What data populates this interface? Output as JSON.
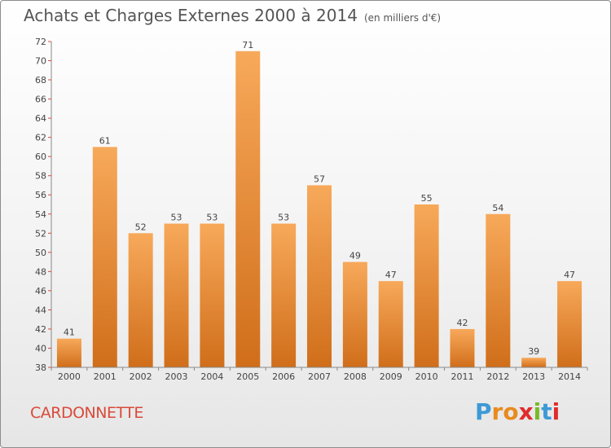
{
  "title": "Achats et Charges Externes 2000 à 2014",
  "unit": "(en milliers d'€)",
  "commune": "CARDONNETTE",
  "logo": {
    "letters": [
      "P",
      "r",
      "o",
      "x",
      "i",
      "t",
      "i"
    ],
    "colors": [
      "#3c9ad6",
      "#e88b1f",
      "#e88b1f",
      "#e12c2c",
      "#7ab929",
      "#3c9ad6",
      "#e12c2c"
    ]
  },
  "colors": {
    "bar_light": "#f7a95a",
    "bar_dark": "#d06e1a",
    "axis": "#888888",
    "grid_tick": "#d94a3a",
    "commune": "#d94a3a"
  },
  "chart_data": {
    "type": "bar",
    "categories": [
      "2000",
      "2001",
      "2002",
      "2003",
      "2004",
      "2005",
      "2006",
      "2007",
      "2008",
      "2009",
      "2010",
      "2011",
      "2012",
      "2013",
      "2014"
    ],
    "values": [
      41,
      61,
      52,
      53,
      53,
      71,
      53,
      57,
      49,
      47,
      55,
      42,
      54,
      39,
      47
    ],
    "ylim": [
      38,
      72
    ],
    "yticks": [
      38,
      40,
      42,
      44,
      46,
      48,
      50,
      52,
      54,
      56,
      58,
      60,
      62,
      64,
      66,
      68,
      70,
      72
    ],
    "grid": false,
    "data_labels": true
  }
}
